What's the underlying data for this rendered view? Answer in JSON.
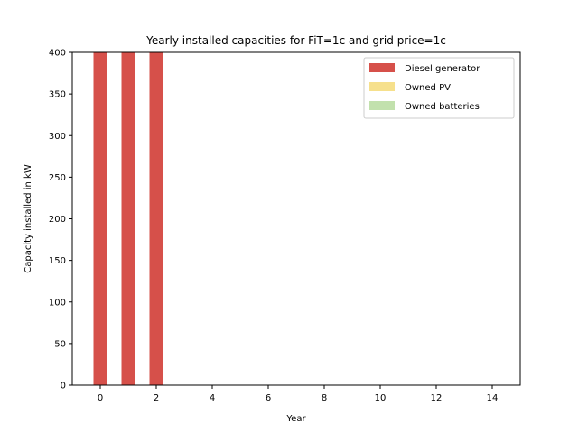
{
  "chart_data": {
    "type": "bar",
    "stacked": true,
    "title": "Yearly installed capacities for FiT=1c and grid price=1c",
    "xlabel": "Year",
    "ylabel": "Capacity installed in kW",
    "x": [
      0,
      1,
      2,
      3,
      4,
      5,
      6,
      7,
      8,
      9,
      10,
      11,
      12,
      13,
      14
    ],
    "x_ticks": [
      0,
      2,
      4,
      6,
      8,
      10,
      12,
      14
    ],
    "y_ticks": [
      0,
      50,
      100,
      150,
      200,
      250,
      300,
      350,
      400
    ],
    "xlim": [
      -1,
      15
    ],
    "ylim": [
      0,
      400
    ],
    "grid": false,
    "legend_position": "top-right",
    "series": [
      {
        "name": "Diesel generator",
        "color": "#d6504a",
        "values": [
          400,
          400,
          400,
          0,
          0,
          0,
          0,
          0,
          0,
          0,
          0,
          0,
          0,
          0,
          0
        ]
      },
      {
        "name": "Owned PV",
        "color": "#f6e08c",
        "values": [
          0,
          0,
          0,
          0,
          0,
          0,
          0,
          0,
          0,
          0,
          0,
          0,
          0,
          0,
          0
        ]
      },
      {
        "name": "Owned batteries",
        "color": "#c2e1ad",
        "values": [
          0,
          0,
          0,
          0,
          0,
          0,
          0,
          0,
          0,
          0,
          0,
          0,
          0,
          0,
          0
        ]
      }
    ]
  }
}
